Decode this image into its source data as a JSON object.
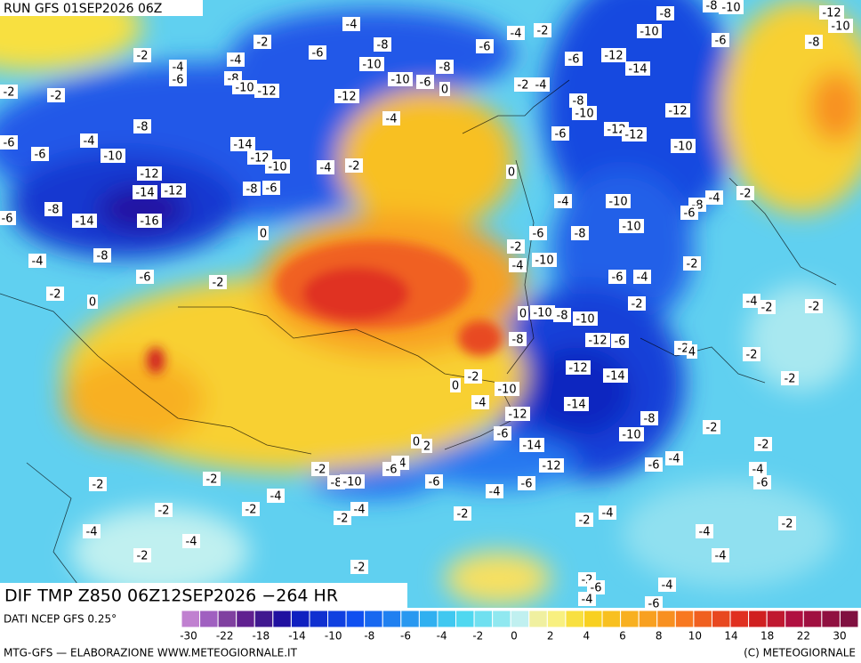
{
  "header": {
    "title": "RUN GFS 01SEP2026 06Z"
  },
  "map": {
    "title": "DIF TMP Z850 06Z12SEP2026 −264 HR",
    "contour_labels": [
      -4,
      -2,
      -8,
      -6,
      -6,
      -4,
      -2,
      -8,
      -8,
      -10,
      -12,
      -10,
      -10,
      -6,
      -8,
      -2,
      -4,
      -4,
      -6,
      -8,
      -10,
      -12,
      -10,
      -10,
      -6,
      -8,
      0,
      -2,
      -4,
      -6,
      -12,
      -14,
      -2,
      -2,
      -12,
      -8,
      -10,
      -12,
      -4,
      -8,
      -4,
      -6,
      -12,
      -12,
      -6,
      -6,
      -10,
      -14,
      -12,
      -10,
      -4,
      -2,
      0,
      -10,
      -12,
      -14,
      -12,
      -8,
      -6,
      -2,
      -4,
      -4,
      -10,
      -8,
      -6,
      -6,
      -8,
      -14,
      -16,
      -10,
      0,
      -8,
      -6,
      -2,
      -4,
      -8,
      -10,
      -4,
      -2,
      -6,
      -2,
      -6,
      -4,
      -2,
      0,
      -2,
      -4,
      -2,
      -2,
      0,
      -10,
      -8,
      -10,
      -8,
      -12,
      -6,
      -2,
      4,
      -2,
      -2,
      0,
      -12,
      -14,
      -2,
      -10,
      -4,
      -14,
      -12,
      -8,
      -2,
      0,
      2,
      -6,
      -14,
      -10,
      -2,
      -4,
      -6,
      -2,
      -8,
      -10,
      -6,
      -12,
      -6,
      -4,
      -4,
      -6,
      -2,
      -2,
      -6,
      -4,
      -4,
      -2,
      -2,
      -2,
      -4,
      -2,
      -4,
      -2,
      -2,
      -4,
      -4,
      -4,
      -2,
      -4,
      -2,
      -2,
      -6,
      -4,
      -4,
      -6
    ]
  },
  "legend": {
    "source": "DATI NCEP GFS 0.25°",
    "colors": [
      "#c080d0",
      "#a060c0",
      "#8040a0",
      "#602090",
      "#401890",
      "#2010a0",
      "#1020c0",
      "#1030d0",
      "#1040e0",
      "#1050f0",
      "#1868f0",
      "#2080f0",
      "#2898f0",
      "#30b0f0",
      "#40c8f0",
      "#50d8f0",
      "#70e0f0",
      "#90e8f0",
      "#c0f0f0",
      "#f0f0a0",
      "#f8f080",
      "#f8e040",
      "#f8d020",
      "#f8c020",
      "#f8b020",
      "#f8a020",
      "#f89020",
      "#f87820",
      "#f06020",
      "#e84820",
      "#e03020",
      "#d02020",
      "#c01830",
      "#b01040",
      "#a01040",
      "#901040",
      "#801040"
    ],
    "labels": [
      -30,
      -22,
      -18,
      -14,
      -10,
      -8,
      -6,
      -4,
      -2,
      0,
      2,
      4,
      6,
      8,
      10,
      14,
      18,
      22,
      30
    ]
  },
  "footer": {
    "left": "MTG-GFS — ELABORAZIONE WWW.METEOGIORNALE.IT",
    "right": "(C) METEOGIORNALE"
  }
}
